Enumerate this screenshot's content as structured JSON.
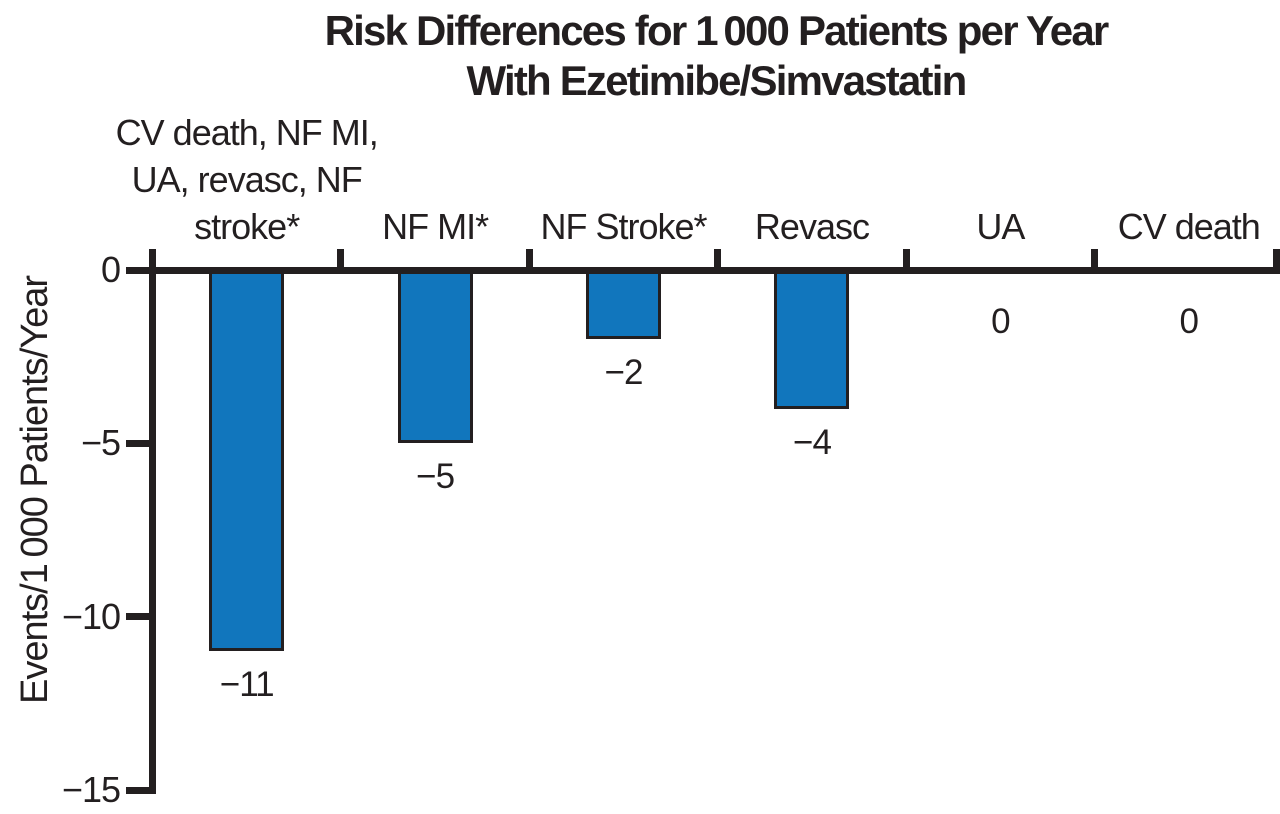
{
  "figure": {
    "title_line1": "Risk Differences for 1 000 Patients per Year",
    "title_line2": "With Ezetimibe/Simvastatin"
  },
  "chart_data": {
    "type": "bar",
    "title": "Risk Differences for 1 000 Patients per Year With Ezetimibe/Simvastatin",
    "xlabel": "",
    "ylabel": "Events/1 000 Patients/Year",
    "ylim": [
      -15,
      0
    ],
    "yticks": [
      0,
      -5,
      -10,
      -15
    ],
    "ytick_labels": [
      "0",
      "−5",
      "−10",
      "−15"
    ],
    "grid": false,
    "legend_position": "none",
    "bar_color": "#1176bd",
    "bar_border_color": "#231f20",
    "axis_color": "#231f20",
    "categories": [
      "CV death, NF MI,\nUA, revasc, NF\nstroke*",
      "NF MI*",
      "NF Stroke*",
      "Revasc",
      "UA",
      "CV death"
    ],
    "values": [
      -11,
      -5,
      -2,
      -4,
      0,
      0
    ],
    "value_labels": [
      "−11",
      "−5",
      "−2",
      "−4",
      "0",
      "0"
    ]
  }
}
